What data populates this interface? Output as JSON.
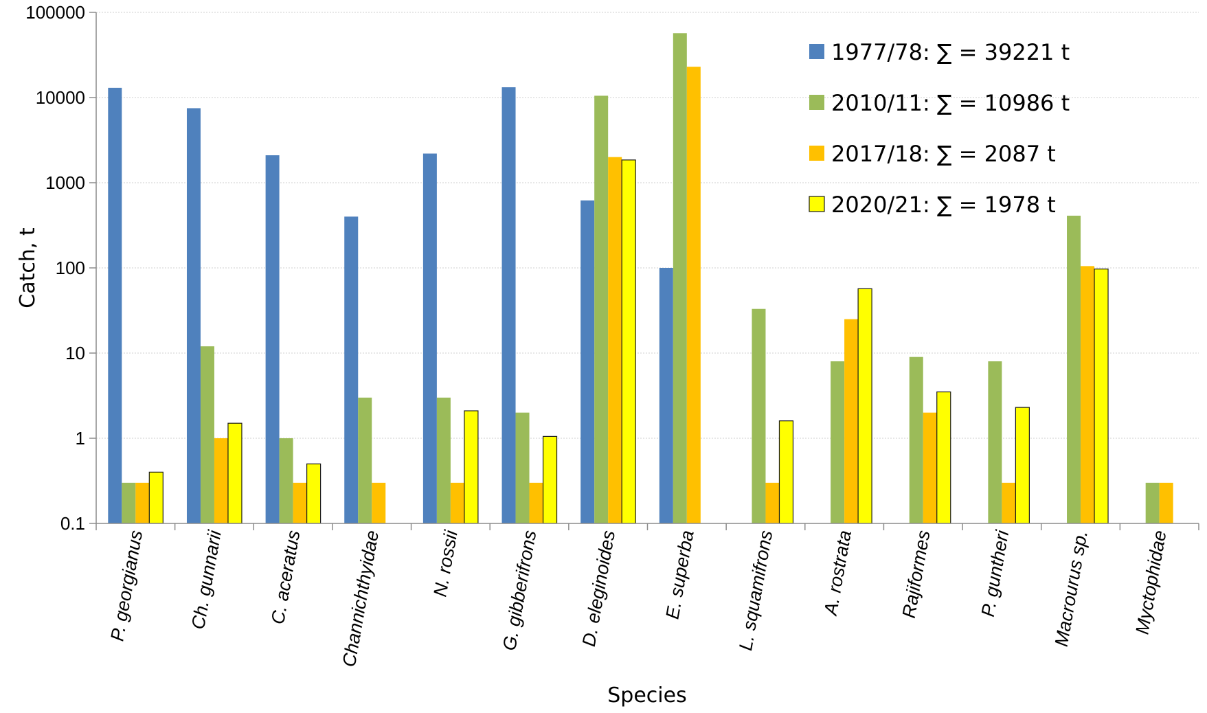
{
  "chart_data": {
    "type": "bar",
    "scale": "log",
    "title": "",
    "xlabel": "Species",
    "ylabel": "Catch, t",
    "ylim": [
      0.1,
      100000
    ],
    "yticks": [
      "100000",
      "10000",
      "1000",
      "100",
      "10",
      "1",
      "0.1"
    ],
    "ytick_values": [
      100000,
      10000,
      1000,
      100,
      10,
      1,
      0.1
    ],
    "legend_position": "top-right",
    "categories": [
      "P. georgianus",
      "Ch. gunnarii",
      "C. aceratus",
      "Channichthyidae",
      "N. rossii",
      "G. gibberifrons",
      "D. eleginoides",
      "E. superba",
      "L. squamifrons",
      "A. rostrata",
      "Rajiformes",
      "P. guntheri",
      "Macrourus sp.",
      "Myctophidae"
    ],
    "series": [
      {
        "name": "1977/78: ∑ = 39221 t",
        "color": "#4f81bd",
        "border": "",
        "values": [
          13000,
          7500,
          2100,
          400,
          2200,
          13200,
          620,
          100,
          null,
          null,
          null,
          null,
          null,
          null
        ]
      },
      {
        "name": "2010/11: ∑ = 10986 t",
        "color": "#9bbb59",
        "border": "",
        "values": [
          0.3,
          12,
          1,
          3,
          3,
          2,
          10500,
          57000,
          33,
          8,
          9,
          8,
          410,
          0.3
        ]
      },
      {
        "name": "2017/18: ∑ = 2087 t",
        "color": "#ffc000",
        "border": "",
        "values": [
          0.3,
          1,
          0.3,
          0.3,
          0.3,
          0.3,
          2000,
          23000,
          0.3,
          25,
          2,
          0.3,
          105,
          0.3
        ]
      },
      {
        "name": "2020/21: ∑ = 1978 t",
        "color": "#ffff00",
        "border": "#1a1a1a",
        "values": [
          0.4,
          1.5,
          0.5,
          0.1,
          2.1,
          1.05,
          1850,
          null,
          1.6,
          57,
          3.5,
          2.3,
          97,
          0.1
        ]
      }
    ]
  }
}
